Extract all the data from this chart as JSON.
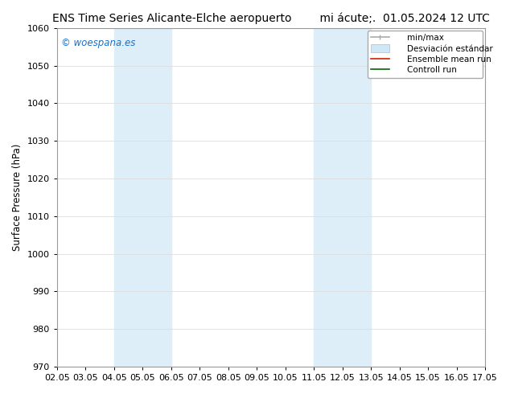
{
  "title_left": "ENS Time Series Alicante-Elche aeropuerto",
  "title_right": "mi ácute;.  01.05.2024 12 UTC",
  "ylabel": "Surface Pressure (hPa)",
  "ylim": [
    970,
    1060
  ],
  "yticks": [
    970,
    980,
    990,
    1000,
    1010,
    1020,
    1030,
    1040,
    1050,
    1060
  ],
  "xtick_labels": [
    "02.05",
    "03.05",
    "04.05",
    "05.05",
    "06.05",
    "07.05",
    "08.05",
    "09.05",
    "10.05",
    "11.05",
    "12.05",
    "13.05",
    "14.05",
    "15.05",
    "16.05",
    "17.05"
  ],
  "xtick_positions": [
    0,
    1,
    2,
    3,
    4,
    5,
    6,
    7,
    8,
    9,
    10,
    11,
    12,
    13,
    14,
    15
  ],
  "shaded_regions": [
    {
      "xstart": 2,
      "xend": 4,
      "color": "#ddeef8"
    },
    {
      "xstart": 9,
      "xend": 11,
      "color": "#ddeef8"
    }
  ],
  "watermark_text": "© woespana.es",
  "watermark_color": "#1a6fc4",
  "background_color": "#ffffff",
  "plot_bg_color": "#ffffff",
  "spine_color": "#999999",
  "grid_color": "#dddddd",
  "title_fontsize": 10,
  "tick_fontsize": 8,
  "ylabel_fontsize": 8.5,
  "legend_fontsize": 7.5
}
